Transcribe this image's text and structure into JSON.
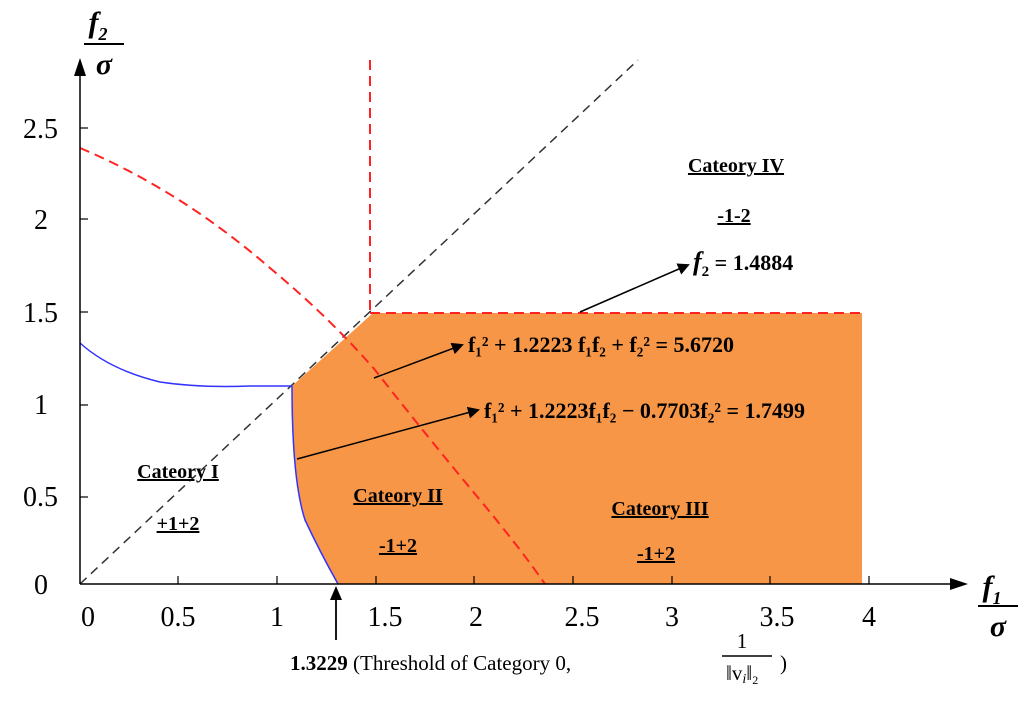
{
  "axes": {
    "x_label_num": "f",
    "x_label_sub": "1",
    "x_label_den": "σ",
    "y_label_num": "f",
    "y_label_sub": "2",
    "y_label_den": "σ",
    "x_ticks": [
      "0",
      "0.5",
      "1",
      "1.5",
      "2",
      "2.5",
      "3",
      "3.5",
      "4"
    ],
    "y_ticks": [
      "0",
      "0.5",
      "1",
      "1.5",
      "2",
      "2.5"
    ]
  },
  "categories": {
    "cat1_title": "Cateory I",
    "cat1_sign": "+1+2",
    "cat2_title": "Cateory II",
    "cat2_sign": "-1+2",
    "cat3_title": "Cateory III",
    "cat3_sign": "-1+2",
    "cat4_title": "Cateory IV",
    "cat4_sign": "-1-2"
  },
  "equations": {
    "eq_f2_lhs": "f",
    "eq_f2_sub": "2",
    "eq_f2_rhs": " = 1.4884",
    "eq_ellipse": "f₁² + 1.2223 f₁f₂ + f₂² = 5.6720",
    "eq_hyper": "f₁² + 1.2223f₁f₂ − 0.7703f₂² = 1.7499"
  },
  "threshold": {
    "value": "1.3229",
    "text": " (Threshold of Category 0, ",
    "frac_num": "1",
    "frac_den": "‖v",
    "frac_den_sub": "i",
    "frac_den_tail": "‖",
    "frac_den_sub2": "2",
    "close": " )"
  },
  "colors": {
    "fill": "#F79646",
    "blue_curve": "#3333FF",
    "red_dashed": "#FF2222",
    "diag_dashed": "#333333"
  }
}
